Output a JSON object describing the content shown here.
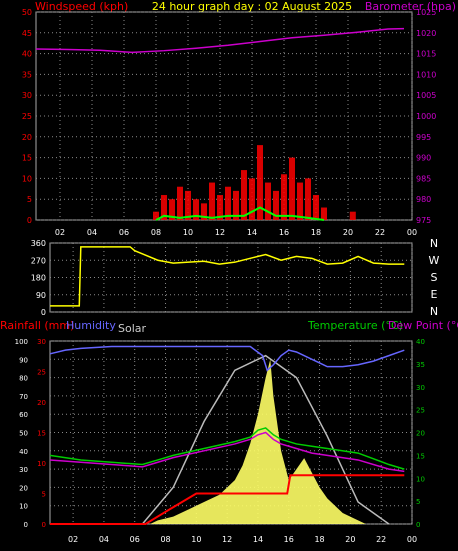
{
  "colors": {
    "background": "#000000",
    "frame": "#aaaaaa",
    "grid": "#8a8a8a",
    "wind_avg": "#00ff00",
    "wind_gust": "#ff0000",
    "baro": "#cc00cc",
    "direction": "#ffff00",
    "rain": "#ff0000",
    "humidity": "#6666ff",
    "solar": "#ffff66",
    "solar_max": "#bbbbbb",
    "temperature": "#00cc00",
    "dew_point": "#cc00cc",
    "label_gray": "#cccccc"
  },
  "chart_data": [
    {
      "type": "line",
      "id": "wind-baro",
      "title": "24 hour graph day : 02 August 2025",
      "ylabel_left": "Windspeed (kph)",
      "ylabel_right": "Barometer (hpa)",
      "x_ticks": [
        "02",
        "04",
        "06",
        "08",
        "10",
        "12",
        "14",
        "16",
        "18",
        "20",
        "22",
        "00"
      ],
      "ylim_left": [
        0,
        50
      ],
      "y_ticks_left": [
        "0",
        "5",
        "10",
        "15",
        "20",
        "25",
        "30",
        "35",
        "40",
        "45",
        "50"
      ],
      "ylim_right": [
        975,
        1025
      ],
      "y_ticks_right": [
        "975",
        "980",
        "985",
        "990",
        "995",
        "1000",
        "1005",
        "1010",
        "1015",
        "1020",
        "1025"
      ],
      "barometer": {
        "x": [
          0,
          2,
          4,
          6,
          8,
          10,
          12,
          14,
          16,
          18,
          20,
          22,
          23
        ],
        "y": [
          1016.1,
          1016.0,
          1015.8,
          1015.3,
          1015.7,
          1016.3,
          1017.0,
          1017.9,
          1018.8,
          1019.4,
          1020.1,
          1020.9,
          1021.0
        ]
      },
      "wind_gust": {
        "x": [
          7.5,
          8,
          8.5,
          9,
          9.5,
          10,
          10.5,
          11,
          11.5,
          12,
          12.5,
          13,
          13.5,
          14,
          14.5,
          15,
          15.5,
          16,
          16.5,
          17,
          17.5,
          18,
          19.8
        ],
        "y": [
          2,
          6,
          5,
          8,
          7,
          5,
          4,
          9,
          6,
          8,
          7,
          12,
          10,
          18,
          9,
          7,
          11,
          15,
          9,
          10,
          6,
          3,
          2
        ]
      },
      "wind_avg": {
        "x": [
          7.5,
          8,
          9,
          10,
          11,
          12,
          13,
          13.5,
          14,
          14.5,
          15,
          16,
          17,
          18
        ],
        "y": [
          0,
          1,
          0.5,
          1,
          0.5,
          1,
          1,
          2,
          3,
          2,
          1,
          1,
          0.5,
          0
        ]
      }
    },
    {
      "type": "line",
      "id": "wind-direction",
      "ylim": [
        0,
        360
      ],
      "y_ticks": [
        "0",
        "90",
        "180",
        "270",
        "360"
      ],
      "compass_labels": [
        "N",
        "W",
        "S",
        "E",
        "N"
      ],
      "x": [
        0,
        1.9,
        2,
        5.2,
        5.5,
        7,
        8,
        9,
        10,
        11,
        12,
        13,
        14,
        15,
        16,
        17,
        18,
        19,
        20,
        21,
        22,
        23
      ],
      "y": [
        32,
        32,
        340,
        340,
        320,
        270,
        255,
        260,
        265,
        250,
        260,
        280,
        300,
        270,
        290,
        280,
        250,
        255,
        290,
        255,
        250,
        250
      ]
    },
    {
      "type": "line",
      "id": "rain-humidity-solar-temp",
      "ylabel_left": "Rainfall (mm)",
      "ylabel_humidity": "Humidity",
      "ylabel_solar": "Solar",
      "ylabel_right": "Temperature (°C)",
      "ylabel_dew": "Dew Point (°C)",
      "x_ticks": [
        "02",
        "04",
        "06",
        "08",
        "10",
        "12",
        "14",
        "16",
        "18",
        "20",
        "22",
        "00"
      ],
      "ylim_rain": [
        0,
        30
      ],
      "y_ticks_rain": [
        "0",
        "5",
        "10",
        "15",
        "20",
        "25",
        "30"
      ],
      "ylim_humidity": [
        0,
        100
      ],
      "y_ticks_humidity": [
        "0",
        "10",
        "20",
        "30",
        "40",
        "50",
        "60",
        "70",
        "80",
        "90",
        "100"
      ],
      "ylim_temp": [
        0,
        40
      ],
      "y_ticks_temp": [
        "0",
        "5",
        "10",
        "15",
        "20",
        "25",
        "30",
        "35",
        "40"
      ],
      "humidity": {
        "x": [
          0,
          1,
          2,
          4,
          6,
          8,
          10,
          12,
          13,
          13.8,
          14.1,
          14.5,
          15,
          15.5,
          16,
          17,
          17.5,
          18,
          19,
          20,
          21,
          22,
          23
        ],
        "y": [
          93,
          95,
          96,
          97,
          97,
          97,
          97,
          97,
          97,
          92,
          84,
          87,
          92,
          95,
          94,
          90,
          88,
          86,
          86,
          87,
          89,
          92,
          95
        ]
      },
      "temperature": {
        "x": [
          0,
          2,
          4,
          6,
          7,
          8,
          10,
          12,
          13,
          13.5,
          14,
          14.5,
          15,
          16,
          17,
          18,
          20,
          22,
          23
        ],
        "y": [
          15,
          14,
          13.5,
          13,
          14,
          15,
          16.5,
          18,
          19,
          20.5,
          21,
          19.5,
          18.5,
          17.5,
          17,
          16.5,
          15.5,
          13,
          12
        ]
      },
      "dew_point": {
        "x": [
          0,
          2,
          4,
          6,
          7,
          8,
          10,
          12,
          13,
          13.5,
          14,
          14.5,
          15,
          16,
          17,
          18,
          20,
          22,
          23
        ],
        "y": [
          14,
          13.5,
          13,
          12.5,
          13.5,
          14.5,
          16,
          17.5,
          18.5,
          19.5,
          20,
          18.5,
          17.5,
          16.5,
          15.5,
          15,
          14,
          12,
          11.5
        ]
      },
      "rainfall": {
        "x": [
          0,
          6.2,
          7.5,
          9.5,
          13.8,
          14.2,
          15.4,
          15.6,
          23
        ],
        "y": [
          0,
          0,
          2,
          5,
          5,
          5,
          5,
          8,
          8
        ]
      },
      "solar": {
        "x": [
          6.5,
          7,
          8,
          9,
          10,
          11,
          12,
          12.5,
          13,
          13.5,
          14,
          14.3,
          14.5,
          15,
          15.5,
          16,
          16.5,
          17,
          17.5,
          18,
          19,
          20,
          20.5
        ],
        "y": [
          0,
          1,
          2,
          4,
          6,
          8,
          12,
          16,
          22,
          30,
          40,
          45,
          35,
          20,
          12,
          15,
          18,
          14,
          10,
          7,
          3,
          1,
          0
        ]
      },
      "solar_max": {
        "x": [
          6,
          8,
          10,
          12,
          14,
          16,
          18,
          20,
          22
        ],
        "y": [
          0,
          10,
          28,
          42,
          46,
          40,
          24,
          6,
          0
        ]
      }
    }
  ]
}
